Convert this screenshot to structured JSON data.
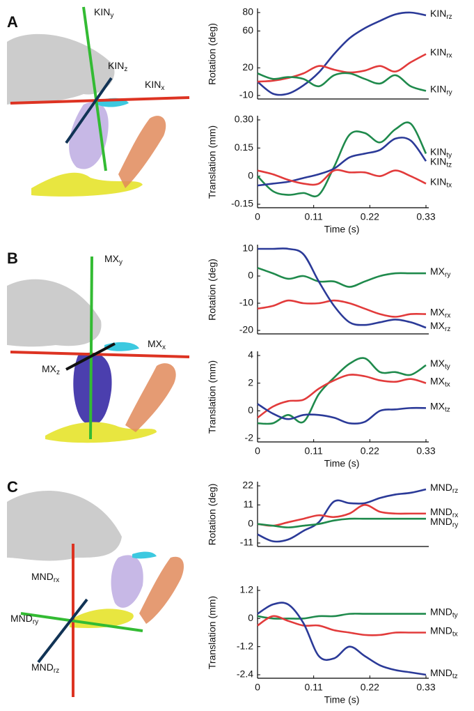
{
  "panels": [
    {
      "letter": "A",
      "image_labels": [
        "KINy",
        "KINz",
        "KINx"
      ]
    },
    {
      "letter": "B",
      "image_labels": [
        "MXy",
        "MXx",
        "MXz"
      ]
    },
    {
      "letter": "C",
      "image_labels": [
        "MNDrx",
        "MNDry",
        "MNDrz"
      ]
    }
  ],
  "chart_data": [
    {
      "type": "line",
      "ylabel": "Rotation (deg)",
      "x": [
        0,
        0.03,
        0.06,
        0.09,
        0.12,
        0.15,
        0.18,
        0.21,
        0.24,
        0.27,
        0.3,
        0.33
      ],
      "xlim": [
        0,
        0.33
      ],
      "ylim": [
        -10,
        80
      ],
      "yticks": [
        -10,
        20,
        60,
        80
      ],
      "series": [
        {
          "name": "KINrz",
          "color": "#2b3a98",
          "values": [
            5,
            -8,
            -8,
            1,
            15,
            35,
            52,
            63,
            71,
            78,
            80,
            77
          ]
        },
        {
          "name": "KINrx",
          "color": "#e23b3b",
          "values": [
            5,
            6,
            9,
            14,
            22,
            18,
            15,
            17,
            22,
            16,
            26,
            35
          ]
        },
        {
          "name": "KINry",
          "color": "#1f8a4c",
          "values": [
            14,
            8,
            10,
            8,
            0,
            12,
            14,
            8,
            3,
            12,
            0,
            -5
          ]
        }
      ]
    },
    {
      "type": "line",
      "ylabel": "Translation (mm)",
      "xlabel": "Time (s)",
      "x": [
        0,
        0.03,
        0.06,
        0.09,
        0.12,
        0.15,
        0.18,
        0.21,
        0.24,
        0.27,
        0.3,
        0.33
      ],
      "xlim": [
        0,
        0.33
      ],
      "xticks": [
        0,
        0.11,
        0.22,
        0.33
      ],
      "ylim": [
        -0.15,
        0.3
      ],
      "yticks": [
        -0.15,
        0,
        0.15,
        {
          "value": 0.3,
          "label": "0.30"
        }
      ],
      "series": [
        {
          "name": "KINty",
          "color": "#1f8a4c",
          "values": [
            0,
            -0.08,
            -0.1,
            -0.09,
            -0.1,
            0.05,
            0.22,
            0.23,
            0.18,
            0.25,
            0.28,
            0.12
          ]
        },
        {
          "name": "KINtz",
          "color": "#2b3a98",
          "values": [
            -0.05,
            -0.04,
            -0.03,
            -0.01,
            0.01,
            0.04,
            0.1,
            0.12,
            0.14,
            0.2,
            0.19,
            0.08
          ]
        },
        {
          "name": "KINtx",
          "color": "#e23b3b",
          "values": [
            0.03,
            0.01,
            -0.02,
            -0.04,
            -0.04,
            0.03,
            0.02,
            0.02,
            0,
            0.03,
            0,
            -0.04
          ]
        }
      ]
    },
    {
      "type": "line",
      "ylabel": "Rotation (deg)",
      "x": [
        0,
        0.03,
        0.06,
        0.09,
        0.12,
        0.15,
        0.18,
        0.21,
        0.24,
        0.27,
        0.3,
        0.33
      ],
      "xlim": [
        0,
        0.33
      ],
      "ylim": [
        -20,
        10
      ],
      "yticks": [
        -20,
        -10,
        0,
        10
      ],
      "series": [
        {
          "name": "MXry",
          "color": "#1f8a4c",
          "values": [
            3,
            1,
            -1,
            0,
            -2,
            -2,
            -4,
            -2,
            0,
            1,
            1,
            1
          ]
        },
        {
          "name": "MXrx",
          "color": "#e23b3b",
          "values": [
            -12,
            -11,
            -9,
            -10,
            -10,
            -9,
            -10,
            -12,
            -14,
            -15,
            -14,
            -14
          ]
        },
        {
          "name": "MXrz",
          "color": "#2b3a98",
          "values": [
            10,
            10,
            10,
            8,
            -2,
            -11,
            -17,
            -18,
            -17,
            -16,
            -17,
            -19
          ]
        }
      ]
    },
    {
      "type": "line",
      "ylabel": "Translation (mm)",
      "xlabel": "Time (s)",
      "x": [
        0,
        0.03,
        0.06,
        0.09,
        0.12,
        0.15,
        0.18,
        0.21,
        0.24,
        0.27,
        0.3,
        0.33
      ],
      "xlim": [
        0,
        0.33
      ],
      "xticks": [
        0,
        0.11,
        0.22,
        0.33
      ],
      "ylim": [
        -2,
        4
      ],
      "yticks": [
        -2,
        0,
        2,
        4
      ],
      "series": [
        {
          "name": "MXty",
          "color": "#1f8a4c",
          "values": [
            -0.9,
            -0.9,
            -0.3,
            -0.8,
            1.2,
            2.4,
            3.4,
            3.8,
            2.8,
            2.8,
            2.6,
            3.3
          ]
        },
        {
          "name": "MXtx",
          "color": "#e23b3b",
          "values": [
            -0.5,
            0.3,
            0.7,
            0.8,
            1.6,
            2.2,
            2.6,
            2.5,
            2.2,
            2.1,
            2.3,
            2.0
          ]
        },
        {
          "name": "MXtz",
          "color": "#2b3a98",
          "values": [
            0.5,
            -0.2,
            -0.6,
            -0.3,
            -0.3,
            -0.5,
            -0.9,
            -0.8,
            0,
            0.1,
            0.2,
            0.2
          ]
        }
      ]
    },
    {
      "type": "line",
      "ylabel": "Rotation (deg)",
      "x": [
        0,
        0.03,
        0.06,
        0.09,
        0.12,
        0.15,
        0.18,
        0.21,
        0.24,
        0.27,
        0.3,
        0.33
      ],
      "xlim": [
        0,
        0.33
      ],
      "ylim": [
        -11,
        22
      ],
      "yticks": [
        -11,
        0,
        11,
        22
      ],
      "series": [
        {
          "name": "MNDrz",
          "color": "#2b3a98",
          "values": [
            -6,
            -10,
            -9,
            -4,
            1,
            13,
            12,
            12,
            15,
            17,
            18,
            20
          ]
        },
        {
          "name": "MNDrx",
          "color": "#e23b3b",
          "values": [
            0,
            -1,
            1,
            3,
            5,
            4,
            6,
            11,
            7,
            6,
            6,
            6
          ]
        },
        {
          "name": "MNDry",
          "color": "#1f8a4c",
          "values": [
            0,
            -1,
            -2,
            -1,
            0,
            2,
            3,
            3,
            3,
            3,
            3,
            3
          ]
        }
      ]
    },
    {
      "type": "line",
      "ylabel": "Translation (mm)",
      "xlabel": "Time (s)",
      "x": [
        0,
        0.03,
        0.06,
        0.09,
        0.12,
        0.15,
        0.18,
        0.21,
        0.24,
        0.27,
        0.3,
        0.33
      ],
      "xlim": [
        0,
        0.33
      ],
      "xticks": [
        0,
        0.11,
        0.22,
        0.33
      ],
      "ylim": [
        -2.4,
        1.2
      ],
      "yticks": [
        -2.4,
        -1.2,
        0,
        1.2
      ],
      "series": [
        {
          "name": "MNDty",
          "color": "#1f8a4c",
          "values": [
            0.1,
            0,
            0,
            0,
            0.1,
            0.1,
            0.2,
            0.2,
            0.2,
            0.2,
            0.2,
            0.2
          ]
        },
        {
          "name": "MNDtx",
          "color": "#e23b3b",
          "values": [
            -0.3,
            0.1,
            -0.1,
            -0.3,
            -0.3,
            -0.5,
            -0.6,
            -0.7,
            -0.7,
            -0.6,
            -0.6,
            -0.6
          ]
        },
        {
          "name": "MNDtz",
          "color": "#2b3a98",
          "values": [
            0.2,
            0.6,
            0.6,
            -0.2,
            -1.6,
            -1.7,
            -1.2,
            -1.6,
            -2,
            -2.2,
            -2.3,
            -2.4
          ]
        }
      ]
    }
  ]
}
